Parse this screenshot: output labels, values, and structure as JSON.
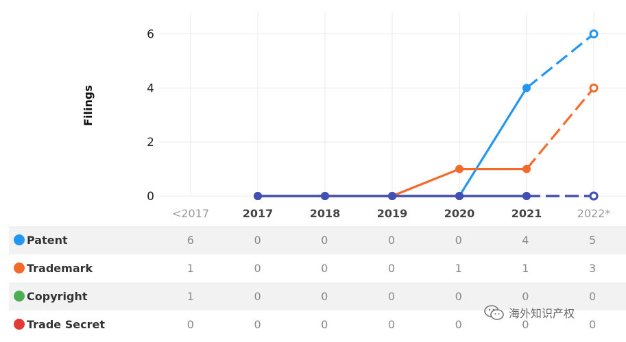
{
  "chart_data": {
    "type": "line",
    "ylabel": "Filings",
    "ylim": [
      0,
      6.8
    ],
    "yticks": [
      0,
      2,
      4,
      6
    ],
    "categories": [
      "<2017",
      "2017",
      "2018",
      "2019",
      "2020",
      "2021",
      "2022*"
    ],
    "projected_categories": [
      "<2017",
      "2022*"
    ],
    "series": [
      {
        "name": "Patent",
        "color": "#2196F3",
        "table": [
          6,
          0,
          0,
          0,
          0,
          4,
          5
        ],
        "values": [
          null,
          0,
          0,
          0,
          0,
          4,
          6
        ],
        "projected_from_index": 5
      },
      {
        "name": "Trademark",
        "color": "#F26B2B",
        "table": [
          1,
          0,
          0,
          0,
          1,
          1,
          3
        ],
        "values": [
          null,
          0,
          0,
          0,
          1,
          1,
          4
        ],
        "projected_from_index": 5
      },
      {
        "name": "Copyright",
        "color": "#4CAF50",
        "table": [
          1,
          0,
          0,
          0,
          0,
          0,
          0
        ],
        "values": [
          null,
          0,
          0,
          0,
          0,
          0,
          0
        ],
        "projected_from_index": 5
      },
      {
        "name": "Trade Secret",
        "color": "#E53935",
        "table": [
          0,
          0,
          0,
          0,
          0,
          0,
          0
        ],
        "values": [
          null,
          0,
          0,
          0,
          0,
          0,
          0
        ],
        "projected_from_index": 5
      },
      {
        "name": "",
        "color": "#3F51B5",
        "table": null,
        "values": [
          null,
          0,
          0,
          0,
          0,
          0,
          0
        ],
        "projected_from_index": 5
      }
    ]
  },
  "watermark": {
    "text": "海外知识产权",
    "icon": "wechat-icon"
  }
}
